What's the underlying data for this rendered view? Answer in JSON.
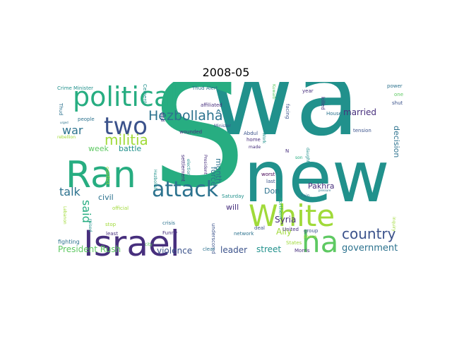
{
  "figure": {
    "title": "2008-05"
  },
  "palette": {
    "dark_purple": "#440154",
    "indigo": "#472f7d",
    "blue": "#3b528b",
    "steel": "#2c728e",
    "teal": "#21918c",
    "green_teal": "#27ad81",
    "green": "#5ec962",
    "light_green": "#a0da39",
    "yellow": "#fde725"
  },
  "words": [
    {
      "text": "wa",
      "color": "#21918c"
    },
    {
      "text": "S",
      "color": "#27ad81"
    },
    {
      "text": "new",
      "color": "#21918c"
    },
    {
      "text": "Israel",
      "color": "#472f7d"
    },
    {
      "text": "Ran",
      "color": "#27ad81"
    },
    {
      "text": "political",
      "color": "#27ad81"
    },
    {
      "text": "White",
      "color": "#a0da39"
    },
    {
      "text": "attack",
      "color": "#2c728e"
    },
    {
      "text": "two",
      "color": "#3b528b"
    },
    {
      "text": "ha",
      "color": "#5ec962"
    },
    {
      "text": "Hezbollahâ",
      "color": "#2c728e"
    },
    {
      "text": "militia",
      "color": "#a0da39"
    },
    {
      "text": "country",
      "color": "#3b528b"
    },
    {
      "text": "war",
      "color": "#2c728e"
    },
    {
      "text": "talk",
      "color": "#2c728e"
    },
    {
      "text": "said",
      "color": "#27ad81"
    },
    {
      "text": "government",
      "color": "#2c728e"
    },
    {
      "text": "President Rush",
      "color": "#5ec962"
    },
    {
      "text": "street",
      "color": "#21918c"
    },
    {
      "text": "violence",
      "color": "#3b528b"
    },
    {
      "text": "leader",
      "color": "#3b528b"
    },
    {
      "text": "week",
      "color": "#5ec962"
    },
    {
      "text": "battle",
      "color": "#21918c"
    },
    {
      "text": "Syria",
      "color": "#472f7d"
    },
    {
      "text": "married",
      "color": "#472f7d"
    },
    {
      "text": "Pakhra",
      "color": "#472f7d"
    },
    {
      "text": "Ally",
      "color": "#a0da39"
    },
    {
      "text": "Don",
      "color": "#2c728e"
    },
    {
      "text": "will",
      "color": "#472f7d"
    },
    {
      "text": "civil",
      "color": "#2c728e"
    },
    {
      "text": "force",
      "color": "#2c728e"
    },
    {
      "text": "month",
      "color": "#2c728e"
    },
    {
      "text": "decision",
      "color": "#2c728e"
    },
    {
      "text": "Crime Minister",
      "color": "#21918c"
    },
    {
      "text": "Thud Alert",
      "color": "#2c728e"
    },
    {
      "text": "Cement",
      "color": "#21918c"
    },
    {
      "text": "facing",
      "color": "#3b528b"
    },
    {
      "text": "Kuwaiti",
      "color": "#5ec962"
    },
    {
      "text": "year",
      "color": "#472f7d"
    },
    {
      "text": "power",
      "color": "#2c728e"
    },
    {
      "text": "one",
      "color": "#5ec962"
    },
    {
      "text": "shut",
      "color": "#3b528b"
    },
    {
      "text": "killed",
      "color": "#472f7d"
    },
    {
      "text": "House",
      "color": "#2c728e"
    },
    {
      "text": "tension",
      "color": "#3b528b"
    },
    {
      "text": "people",
      "color": "#2c728e"
    },
    {
      "text": "Thud",
      "color": "#2c728e"
    },
    {
      "text": "urged",
      "color": "#2c728e"
    },
    {
      "text": "rebellion",
      "color": "#a0da39"
    },
    {
      "text": "affiliated",
      "color": "#472f7d"
    },
    {
      "text": "Minister",
      "color": "#3b528b"
    },
    {
      "text": "Abdul",
      "color": "#3b528b"
    },
    {
      "text": "home",
      "color": "#472f7d"
    },
    {
      "text": "made",
      "color": "#472f7d"
    },
    {
      "text": "wounded",
      "color": "#472f7d"
    },
    {
      "text": "and",
      "color": "#472f7d"
    },
    {
      "text": "Work",
      "color": "#21918c"
    },
    {
      "text": "daughter",
      "color": "#21918c"
    },
    {
      "text": "son",
      "color": "#27ad81"
    },
    {
      "text": "settlement",
      "color": "#472f7d"
    },
    {
      "text": "election",
      "color": "#21918c"
    },
    {
      "text": "President",
      "color": "#472f7d"
    },
    {
      "text": "Hezbollah",
      "color": "#21918c"
    },
    {
      "text": "conflict",
      "color": "#a0da39"
    },
    {
      "text": "official",
      "color": "#a0da39"
    },
    {
      "text": "Saturday",
      "color": "#21918c"
    },
    {
      "text": "worst",
      "color": "#440154"
    },
    {
      "text": "last",
      "color": "#3b528b"
    },
    {
      "text": "northern",
      "color": "#27ad81"
    },
    {
      "text": "Pain",
      "color": "#2c728e"
    },
    {
      "text": "pressure",
      "color": "#2c728e"
    },
    {
      "text": "Lebanon",
      "color": "#a0da39"
    },
    {
      "text": "raised",
      "color": "#21918c"
    },
    {
      "text": "stop",
      "color": "#a0da39"
    },
    {
      "text": "least",
      "color": "#472f7d"
    },
    {
      "text": "crisis",
      "color": "#2c728e"
    },
    {
      "text": "Funny",
      "color": "#472f7d"
    },
    {
      "text": "city",
      "color": "#5ec962"
    },
    {
      "text": "deal",
      "color": "#3b528b"
    },
    {
      "text": "United",
      "color": "#472f7d"
    },
    {
      "text": "States",
      "color": "#a0da39"
    },
    {
      "text": "peace",
      "color": "#a0da39"
    },
    {
      "text": "group",
      "color": "#3b528b"
    },
    {
      "text": "network",
      "color": "#2c728e"
    },
    {
      "text": "underscored",
      "color": "#3b528b"
    },
    {
      "text": "fighting",
      "color": "#2c728e"
    },
    {
      "text": "clear",
      "color": "#2c728e"
    },
    {
      "text": "Morris",
      "color": "#472f7d"
    },
    {
      "text": "inquiry",
      "color": "#a0da39"
    },
    {
      "text": "N",
      "color": "#472f7d"
    }
  ]
}
